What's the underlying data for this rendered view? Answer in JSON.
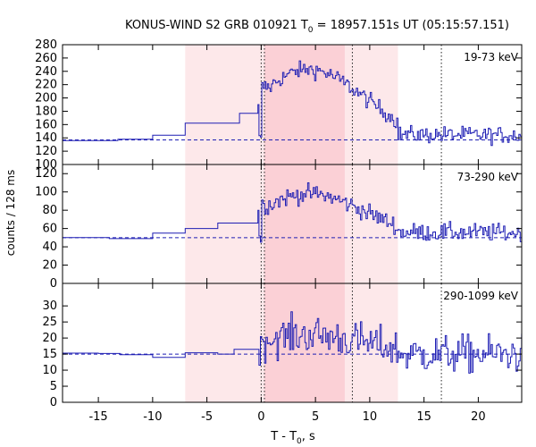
{
  "chart_data": {
    "type": "line",
    "title_prefix": "KONUS-WIND S2 GRB 010921 T",
    "title_sub": "0",
    "title_suffix": " = 18957.151s UT (05:15:57.151)",
    "xlabel_prefix": "T - T",
    "xlabel_sub": "0",
    "xlabel_suffix": ", s",
    "ylabel": "counts / 128 ms",
    "xlim": [
      -18.3,
      24
    ],
    "xticks": [
      -15,
      -10,
      -5,
      0,
      5,
      10,
      15,
      20
    ],
    "shade_light": [
      -7,
      12.6
    ],
    "shade_dark": [
      0.3,
      7.7
    ],
    "vlines": [
      0,
      0.3,
      8.4,
      16.6
    ],
    "colors": {
      "series": "#1f1fb4",
      "shade_light": "#fde8ea",
      "shade_dark": "#fbd0d6"
    },
    "panels": [
      {
        "label": "19-73 keV",
        "ylim": [
          100,
          280
        ],
        "yticks": [
          100,
          120,
          140,
          160,
          180,
          200,
          220,
          240,
          260,
          280
        ],
        "background": 137,
        "pre_steps": [
          {
            "x": -18.3,
            "y": 136
          },
          {
            "x": -13.2,
            "y": 138
          },
          {
            "x": -10.0,
            "y": 144
          },
          {
            "x": -7.0,
            "y": 162
          },
          {
            "x": -2.0,
            "y": 177
          },
          {
            "x": -0.3,
            "y": 190
          }
        ],
        "burst_peak": 243,
        "burst_tail": 145,
        "noise": 9
      },
      {
        "label": "73-290 keV",
        "ylim": [
          0,
          130
        ],
        "yticks": [
          0,
          20,
          40,
          60,
          80,
          100,
          120
        ],
        "background": 50,
        "pre_steps": [
          {
            "x": -18.3,
            "y": 50
          },
          {
            "x": -14.0,
            "y": 49
          },
          {
            "x": -10.0,
            "y": 51
          },
          {
            "x": -10.0,
            "y": 55
          },
          {
            "x": -7.0,
            "y": 60
          },
          {
            "x": -4.0,
            "y": 66
          },
          {
            "x": -0.3,
            "y": 80
          }
        ],
        "burst_peak": 98,
        "burst_tail": 56,
        "noise": 7
      },
      {
        "label": "290-1099 keV",
        "ylim": [
          0,
          37
        ],
        "yticks": [
          0,
          5,
          10,
          15,
          20,
          25,
          30
        ],
        "background": 15,
        "pre_steps": [
          {
            "x": -18.3,
            "y": 15.3
          },
          {
            "x": -15.0,
            "y": 15.2
          },
          {
            "x": -13.0,
            "y": 14.8
          },
          {
            "x": -10.0,
            "y": 14.0
          },
          {
            "x": -7.0,
            "y": 15.4
          },
          {
            "x": -4.0,
            "y": 15.0
          },
          {
            "x": -2.5,
            "y": 16.5
          }
        ],
        "burst_peak": 21,
        "burst_tail": 15,
        "noise": 4.2
      }
    ]
  }
}
